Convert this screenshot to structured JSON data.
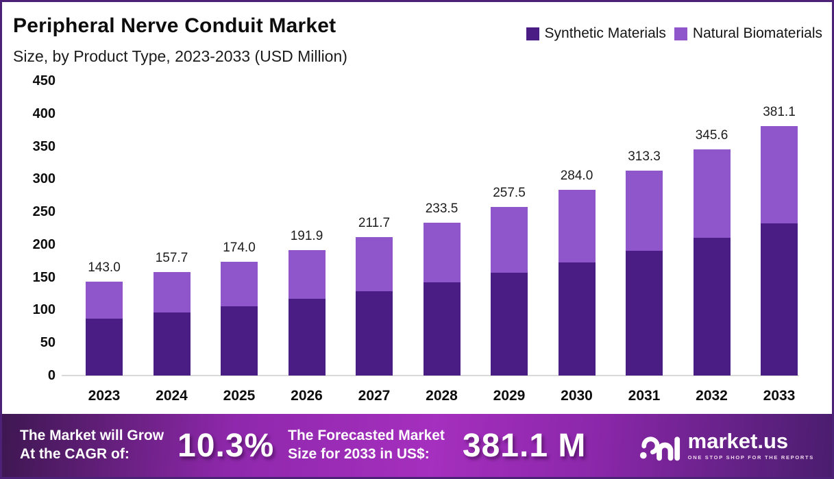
{
  "header": {
    "title": "Peripheral Nerve Conduit Market",
    "subtitle": "Size, by Product Type, 2023-2033 (USD Million)"
  },
  "legend": [
    {
      "label": "Synthetic Materials",
      "color": "#4A1D84"
    },
    {
      "label": "Natural Biomaterials",
      "color": "#8F56CB"
    }
  ],
  "chart_data": {
    "type": "bar",
    "subtype": "stacked",
    "title": "Peripheral Nerve Conduit Market Size, by Product Type, 2023-2033 (USD Million)",
    "categories": [
      "2023",
      "2024",
      "2025",
      "2026",
      "2027",
      "2028",
      "2029",
      "2030",
      "2031",
      "2032",
      "2033"
    ],
    "series": [
      {
        "name": "Synthetic Materials",
        "color": "#4A1D84",
        "values": [
          87.1,
          96.0,
          106.0,
          116.9,
          128.9,
          142.2,
          156.8,
          173.0,
          190.8,
          210.5,
          232.1
        ]
      },
      {
        "name": "Natural Biomaterials",
        "color": "#8F56CB",
        "values": [
          55.9,
          61.7,
          68.0,
          75.0,
          82.8,
          91.3,
          100.7,
          111.0,
          122.5,
          135.1,
          149.0
        ]
      }
    ],
    "totals": [
      143.0,
      157.7,
      174.0,
      191.9,
      211.7,
      233.5,
      257.5,
      284.0,
      313.3,
      345.6,
      381.1
    ],
    "total_labels": [
      "143.0",
      "157.7",
      "174.0",
      "191.9",
      "211.7",
      "233.5",
      "257.5",
      "284.0",
      "313.3",
      "345.6",
      "381.1"
    ],
    "xlabel": "",
    "ylabel": "USD Million",
    "ylim": [
      0,
      450
    ],
    "yticks": [
      0,
      50,
      100,
      150,
      200,
      250,
      300,
      350,
      400,
      450
    ],
    "grid": false,
    "legend_position": "top-right"
  },
  "footer": {
    "cagr_caption_line1": "The Market will Grow",
    "cagr_caption_line2": "At the CAGR of:",
    "cagr_value": "10.3%",
    "forecast_caption_line1": "The Forecasted Market",
    "forecast_caption_line2": "Size for 2033 in US$:",
    "forecast_value": "381.1 M",
    "brand": {
      "name": "market.us",
      "tagline": "ONE STOP SHOP FOR THE REPORTS"
    }
  }
}
